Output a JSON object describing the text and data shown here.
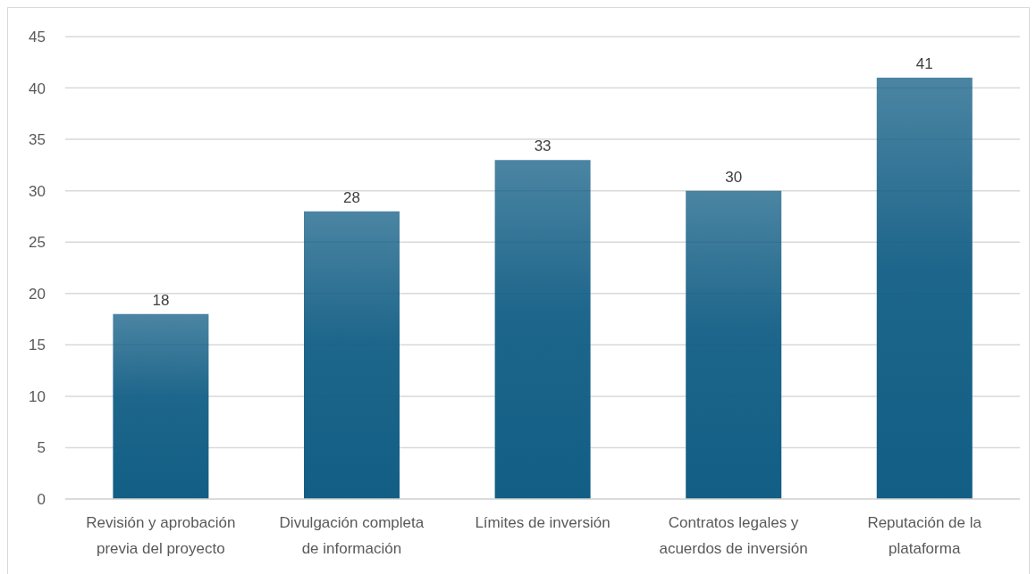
{
  "chart_data": {
    "type": "bar",
    "categories": [
      "Revisión y aprobación previa del proyecto",
      "Divulgación completa de información",
      "Límites de inversión",
      "Contratos legales y acuerdos de inversión",
      "Reputación de la plataforma"
    ],
    "values": [
      18,
      28,
      33,
      30,
      41
    ],
    "color": "#125e85",
    "ylim": [
      0,
      45
    ],
    "yticks": [
      0,
      5,
      10,
      15,
      20,
      25,
      30,
      35,
      40,
      45
    ],
    "grid": "y",
    "data_labels": true
  }
}
